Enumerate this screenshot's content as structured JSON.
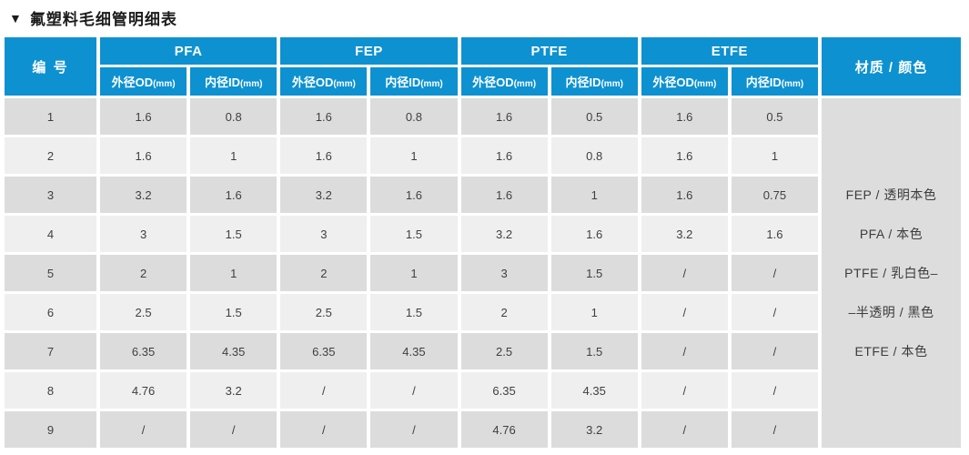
{
  "page": {
    "title_marker": "▼",
    "title": "氟塑料毛细管明细表"
  },
  "colors": {
    "header_blue": "#0d91d1",
    "row_dark": "#dcdcdc",
    "row_light": "#efefef",
    "material_bg": "#dddddd"
  },
  "table": {
    "id_header": "编 号",
    "material_header": "材质 / 颜色",
    "groups": [
      "PFA",
      "FEP",
      "PTFE",
      "ETFE"
    ],
    "od_label": "外径OD",
    "id_label": "内径ID",
    "unit": "(mm)",
    "rows": [
      {
        "no": "1",
        "values": [
          "1.6",
          "0.8",
          "1.6",
          "0.8",
          "1.6",
          "0.5",
          "1.6",
          "0.5"
        ]
      },
      {
        "no": "2",
        "values": [
          "1.6",
          "1",
          "1.6",
          "1",
          "1.6",
          "0.8",
          "1.6",
          "1"
        ]
      },
      {
        "no": "3",
        "values": [
          "3.2",
          "1.6",
          "3.2",
          "1.6",
          "1.6",
          "1",
          "1.6",
          "0.75"
        ]
      },
      {
        "no": "4",
        "values": [
          "3",
          "1.5",
          "3",
          "1.5",
          "3.2",
          "1.6",
          "3.2",
          "1.6"
        ]
      },
      {
        "no": "5",
        "values": [
          "2",
          "1",
          "2",
          "1",
          "3",
          "1.5",
          "/",
          "/"
        ]
      },
      {
        "no": "6",
        "values": [
          "2.5",
          "1.5",
          "2.5",
          "1.5",
          "2",
          "1",
          "/",
          "/"
        ]
      },
      {
        "no": "7",
        "values": [
          "6.35",
          "4.35",
          "6.35",
          "4.35",
          "2.5",
          "1.5",
          "/",
          "/"
        ]
      },
      {
        "no": "8",
        "values": [
          "4.76",
          "3.2",
          "/",
          "/",
          "6.35",
          "4.35",
          "/",
          "/"
        ]
      },
      {
        "no": "9",
        "values": [
          "/",
          "/",
          "/",
          "/",
          "4.76",
          "3.2",
          "/",
          "/"
        ]
      }
    ],
    "material_lines": [
      "FEP / 透明本色",
      "PFA / 本色",
      "PTFE / 乳白色–",
      "–半透明 / 黑色",
      "ETFE / 本色"
    ]
  }
}
